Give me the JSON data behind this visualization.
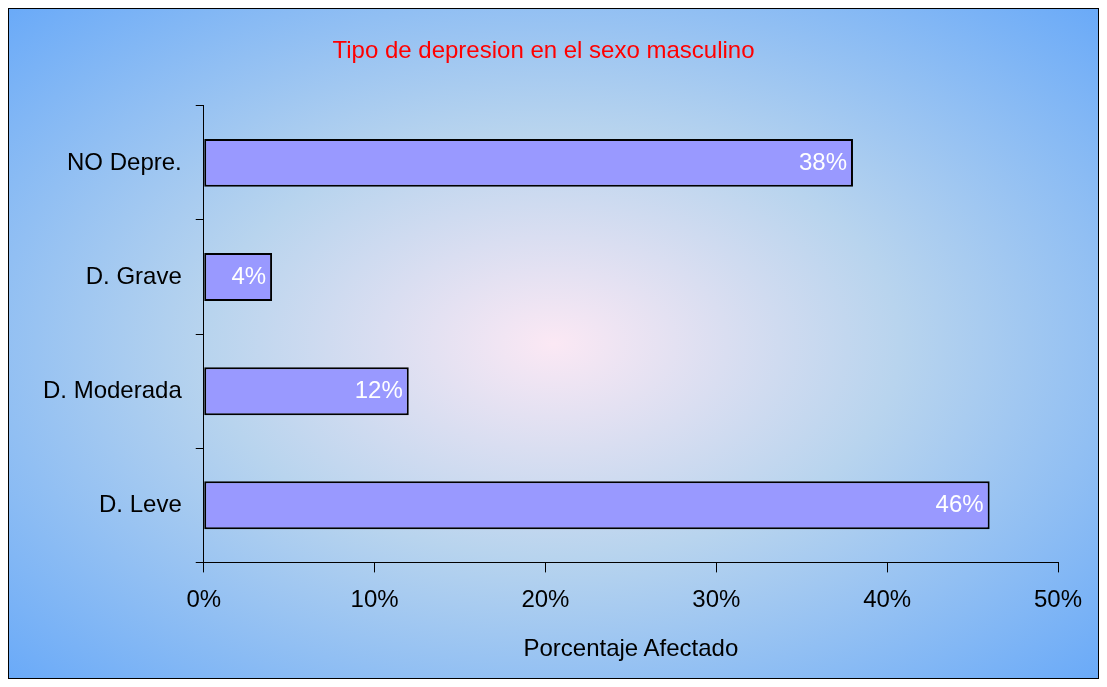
{
  "chart_data": {
    "type": "bar",
    "orientation": "horizontal",
    "title": "Tipo de depresion en el sexo masculino",
    "xlabel": "Porcentaje Afectado",
    "categories": [
      "NO Depre.",
      "D. Grave",
      "D. Moderada",
      "D. Leve"
    ],
    "values": [
      38,
      4,
      12,
      46
    ],
    "color": "#9999ff",
    "value_labels": [
      "38%",
      "4%",
      "12%",
      "46%"
    ],
    "xlim": [
      0,
      50
    ],
    "xticks": [
      {
        "value": 0,
        "label": "0%"
      },
      {
        "value": 10,
        "label": "10%"
      },
      {
        "value": 20,
        "label": "20%"
      },
      {
        "value": 30,
        "label": "30%"
      },
      {
        "value": 40,
        "label": "40%"
      },
      {
        "value": 50,
        "label": "50%"
      }
    ],
    "grid": false,
    "legend": false
  }
}
